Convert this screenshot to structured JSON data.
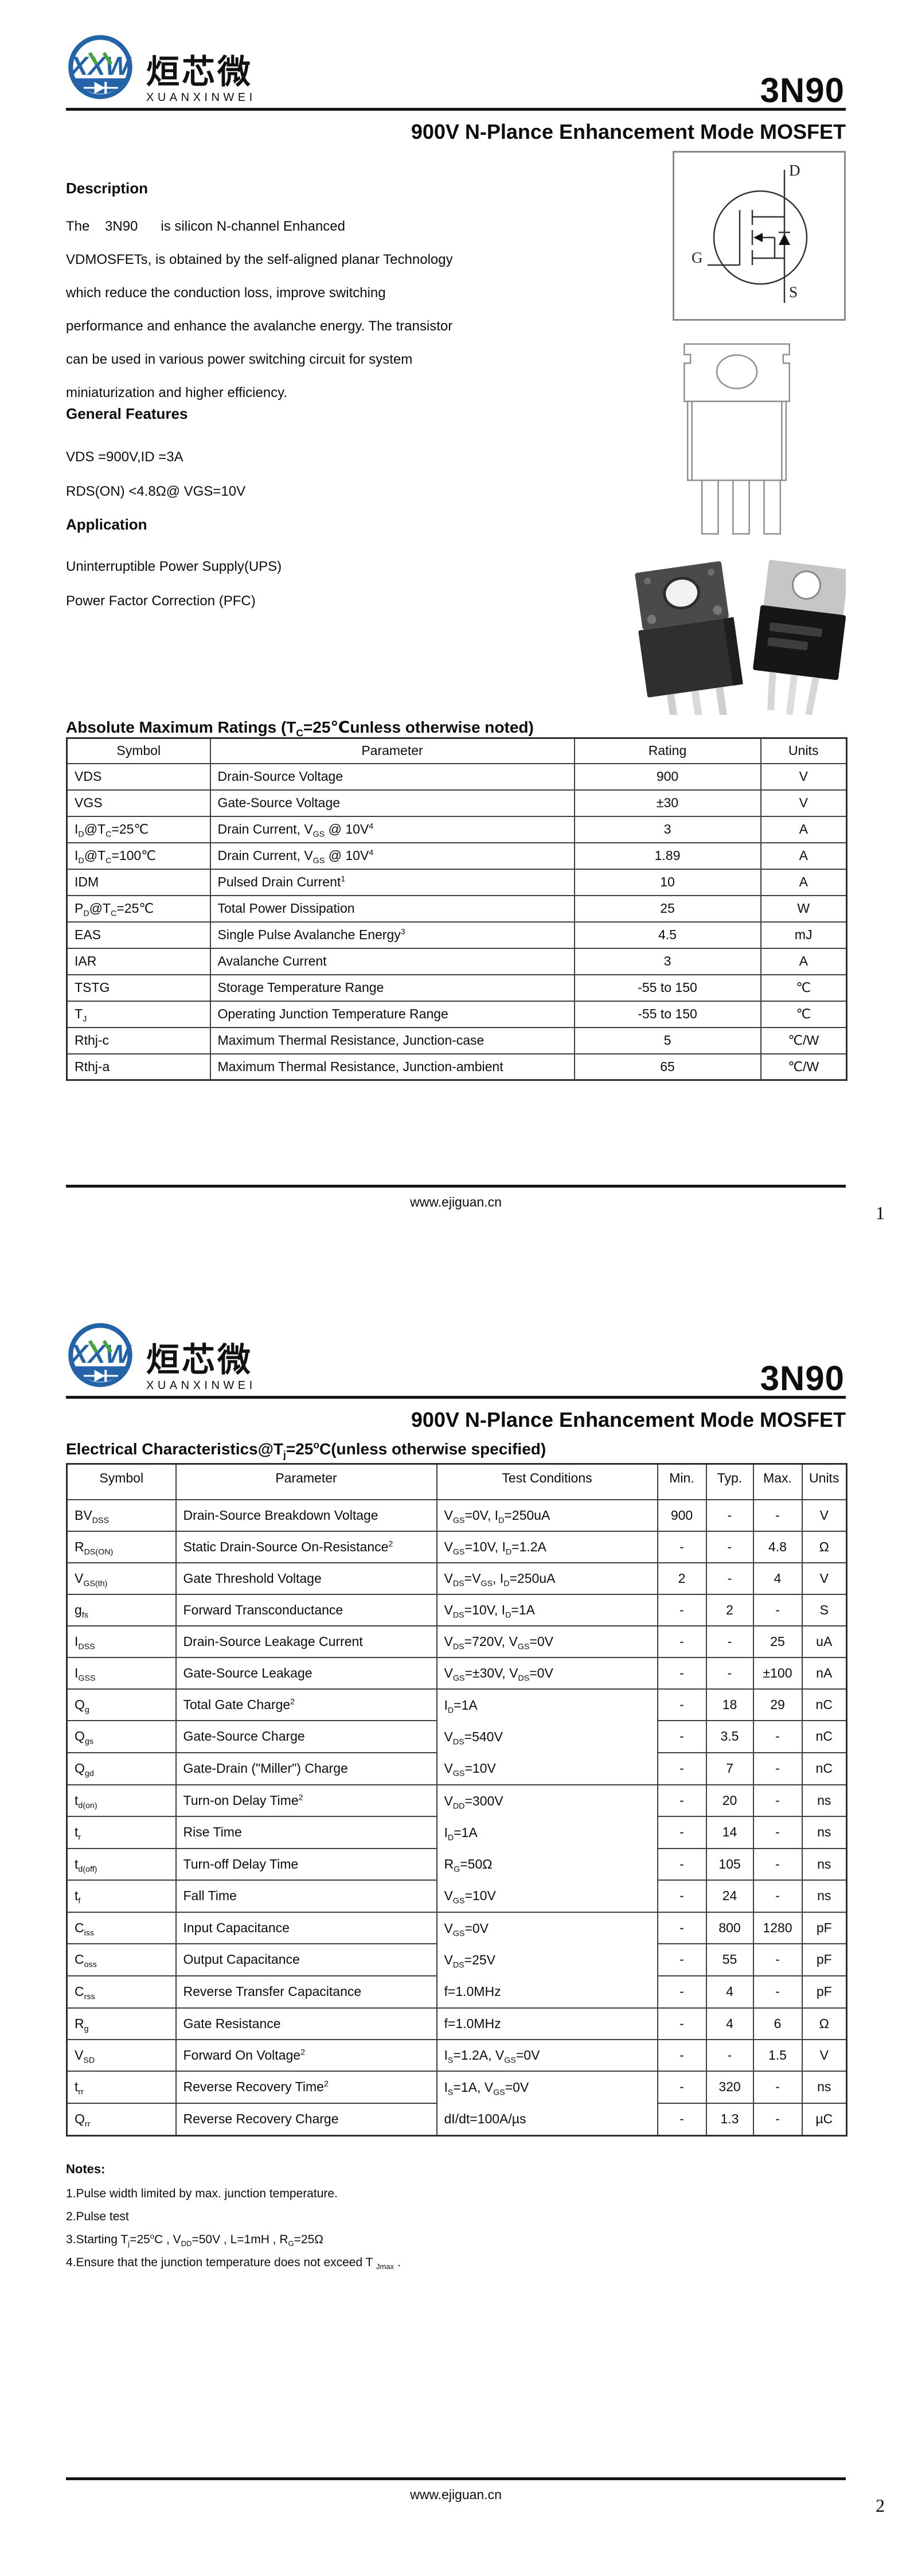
{
  "brand": {
    "monogram": "XXW",
    "name_cn": "烜芯微",
    "name_en": "XUANXINWEI"
  },
  "part_number": "3N90",
  "doc_title": "900V N-Plance Enhancement Mode MOSFET",
  "footer": {
    "url": "www.ejiguan.cn",
    "page1_number": "1",
    "page2_number": "2"
  },
  "page1": {
    "description_heading": "Description",
    "description_lines": [
      "The    3N90      is silicon N-channel Enhanced",
      "VDMOSFETs, is obtained by the self-aligned planar Technology",
      "which reduce the conduction loss, improve switching",
      "performance and enhance the avalanche energy. The transistor",
      "can be used in various power switching circuit for system",
      "miniaturization and higher efficiency."
    ],
    "general_features_heading": "General Features",
    "general_features_lines": [
      "VDS =900V,ID =3A",
      "RDS(ON) <4.8Ω@ VGS=10V"
    ],
    "application_heading": "Application",
    "application_lines": [
      "Uninterruptible Power Supply(UPS)",
      "Power Factor Correction (PFC)"
    ],
    "symbol_labels": {
      "drain": "D",
      "gate": "G",
      "source": "S"
    },
    "abs_max": {
      "heading": "Absolute Maximum Ratings (T~C~=25℃unless otherwise noted)",
      "columns": [
        "Symbol",
        "Parameter",
        "Rating",
        "Units"
      ],
      "rows": [
        [
          "VDS",
          "Drain-Source Voltage",
          "900",
          "V"
        ],
        [
          "VGS",
          "Gate-Source Voltage",
          "±30",
          "V"
        ],
        [
          "I~D~@T~C~=25℃",
          "Drain Current, V~GS~ @ 10V^4^",
          "3",
          "A"
        ],
        [
          "I~D~@T~C~=100℃",
          "Drain Current, V~GS~ @ 10V^4^",
          "1.89",
          "A"
        ],
        [
          "IDM",
          "Pulsed Drain Current^1^",
          "10",
          "A"
        ],
        [
          "P~D~@T~C~=25℃",
          "Total Power Dissipation",
          "25",
          "W"
        ],
        [
          "EAS",
          "Single Pulse Avalanche Energy^3^",
          "4.5",
          "mJ"
        ],
        [
          "IAR",
          "Avalanche Current",
          "3",
          "A"
        ],
        [
          "TSTG",
          "Storage Temperature Range",
          "-55 to 150",
          "℃"
        ],
        [
          "T~J~",
          "Operating Junction Temperature Range",
          "-55 to 150",
          "℃"
        ],
        [
          "Rthj-c",
          "Maximum Thermal Resistance, Junction-case",
          "5",
          "℃/W"
        ],
        [
          "Rthj-a",
          "Maximum Thermal Resistance, Junction-ambient",
          "65",
          "℃/W"
        ]
      ]
    }
  },
  "page2": {
    "elec": {
      "heading": "Electrical Characteristics@T~j~=25^o^C(unless otherwise specified)",
      "columns": [
        "Symbol",
        "Parameter",
        "Test Conditions",
        "Min.",
        "Typ.",
        "Max.",
        "Units"
      ],
      "rows": [
        {
          "sym": "BV~DSS~",
          "param": "Drain-Source Breakdown Voltage",
          "cond": [
            "V~GS~=0V, I~D~=250uA"
          ],
          "span": 1,
          "min": "900",
          "typ": "-",
          "max": "-",
          "unit": "V"
        },
        {
          "sym": "R~DS(ON)~",
          "param": "Static Drain-Source On-Resistance^2^",
          "cond": [
            "V~GS~=10V, I~D~=1.2A"
          ],
          "span": 1,
          "min": "-",
          "typ": "-",
          "max": "4.8",
          "unit": "Ω"
        },
        {
          "sym": "V~GS(th)~",
          "param": "Gate Threshold Voltage",
          "cond": [
            "V~DS~=V~GS~, I~D~=250uA"
          ],
          "span": 1,
          "min": "2",
          "typ": "-",
          "max": "4",
          "unit": "V"
        },
        {
          "sym": "g~fs~",
          "param": "Forward Transconductance",
          "cond": [
            "V~DS~=10V, I~D~=1A"
          ],
          "span": 1,
          "min": "-",
          "typ": "2",
          "max": "-",
          "unit": "S"
        },
        {
          "sym": "I~DSS~",
          "param": "Drain-Source Leakage Current",
          "cond": [
            "V~DS~=720V, V~GS~=0V"
          ],
          "span": 1,
          "min": "-",
          "typ": "-",
          "max": "25",
          "unit": "uA"
        },
        {
          "sym": "I~GSS~",
          "param": "Gate-Source Leakage",
          "cond": [
            "V~GS~=±30V, V~DS~=0V"
          ],
          "span": 1,
          "min": "-",
          "typ": "-",
          "max": "±100",
          "unit": "nA"
        },
        {
          "sym": "Q~g~",
          "param": "Total Gate Charge^2^",
          "cond": [
            "I~D~=1A",
            "V~DS~=540V",
            "V~GS~=10V"
          ],
          "span": 3,
          "min": "-",
          "typ": "18",
          "max": "29",
          "unit": "nC"
        },
        {
          "sym": "Q~gs~",
          "param": "Gate-Source Charge",
          "min": "-",
          "typ": "3.5",
          "max": "-",
          "unit": "nC"
        },
        {
          "sym": "Q~gd~",
          "param": "Gate-Drain (\"Miller\") Charge",
          "min": "-",
          "typ": "7",
          "max": "-",
          "unit": "nC"
        },
        {
          "sym": "t~d(on)~",
          "param": "Turn-on Delay Time^2^",
          "cond": [
            "V~DD~=300V",
            "I~D~=1A",
            "R~G~=50Ω",
            "V~GS~=10V"
          ],
          "span": 4,
          "min": "-",
          "typ": "20",
          "max": "-",
          "unit": "ns"
        },
        {
          "sym": "t~r~",
          "param": "Rise Time",
          "min": "-",
          "typ": "14",
          "max": "-",
          "unit": "ns"
        },
        {
          "sym": "t~d(off)~",
          "param": "Turn-off Delay Time",
          "min": "-",
          "typ": "105",
          "max": "-",
          "unit": "ns"
        },
        {
          "sym": "t~f~",
          "param": "Fall Time",
          "min": "-",
          "typ": "24",
          "max": "-",
          "unit": "ns"
        },
        {
          "sym": "C~iss~",
          "param": "Input Capacitance",
          "cond": [
            "V~GS~=0V",
            "V~DS~=25V",
            "f=1.0MHz"
          ],
          "span": 3,
          "min": "-",
          "typ": "800",
          "max": "1280",
          "unit": "pF"
        },
        {
          "sym": "C~oss~",
          "param": "Output Capacitance",
          "min": "-",
          "typ": "55",
          "max": "-",
          "unit": "pF"
        },
        {
          "sym": "C~rss~",
          "param": "Reverse Transfer Capacitance",
          "min": "-",
          "typ": "4",
          "max": "-",
          "unit": "pF"
        },
        {
          "sym": "R~g~",
          "param": "Gate Resistance",
          "cond": [
            "f=1.0MHz"
          ],
          "span": 1,
          "min": "-",
          "typ": "4",
          "max": "6",
          "unit": "Ω"
        },
        {
          "sym": "V~SD~",
          "param": "Forward On Voltage^2^",
          "cond": [
            "I~S~=1.2A, V~GS~=0V"
          ],
          "span": 1,
          "min": "-",
          "typ": "-",
          "max": "1.5",
          "unit": "V"
        },
        {
          "sym": "t~rr~",
          "param": "Reverse Recovery Time^2^",
          "cond": [
            "I~S~=1A, V~GS~=0V",
            "dI/dt=100A/µs"
          ],
          "span": 2,
          "min": "-",
          "typ": "320",
          "max": "-",
          "unit": "ns"
        },
        {
          "sym": "Q~rr~",
          "param": "Reverse Recovery Charge",
          "min": "-",
          "typ": "1.3",
          "max": "-",
          "unit": "µC"
        }
      ]
    },
    "notes_heading": "Notes:",
    "notes_lines": [
      "1.Pulse width limited by max. junction temperature.",
      "2.Pulse test",
      "3.Starting T~j~=25^o^C , V~DD~=50V , L=1mH , R~G~=25Ω",
      "4.Ensure that the junction temperature does not exceed T ~Jmax~ ."
    ]
  }
}
